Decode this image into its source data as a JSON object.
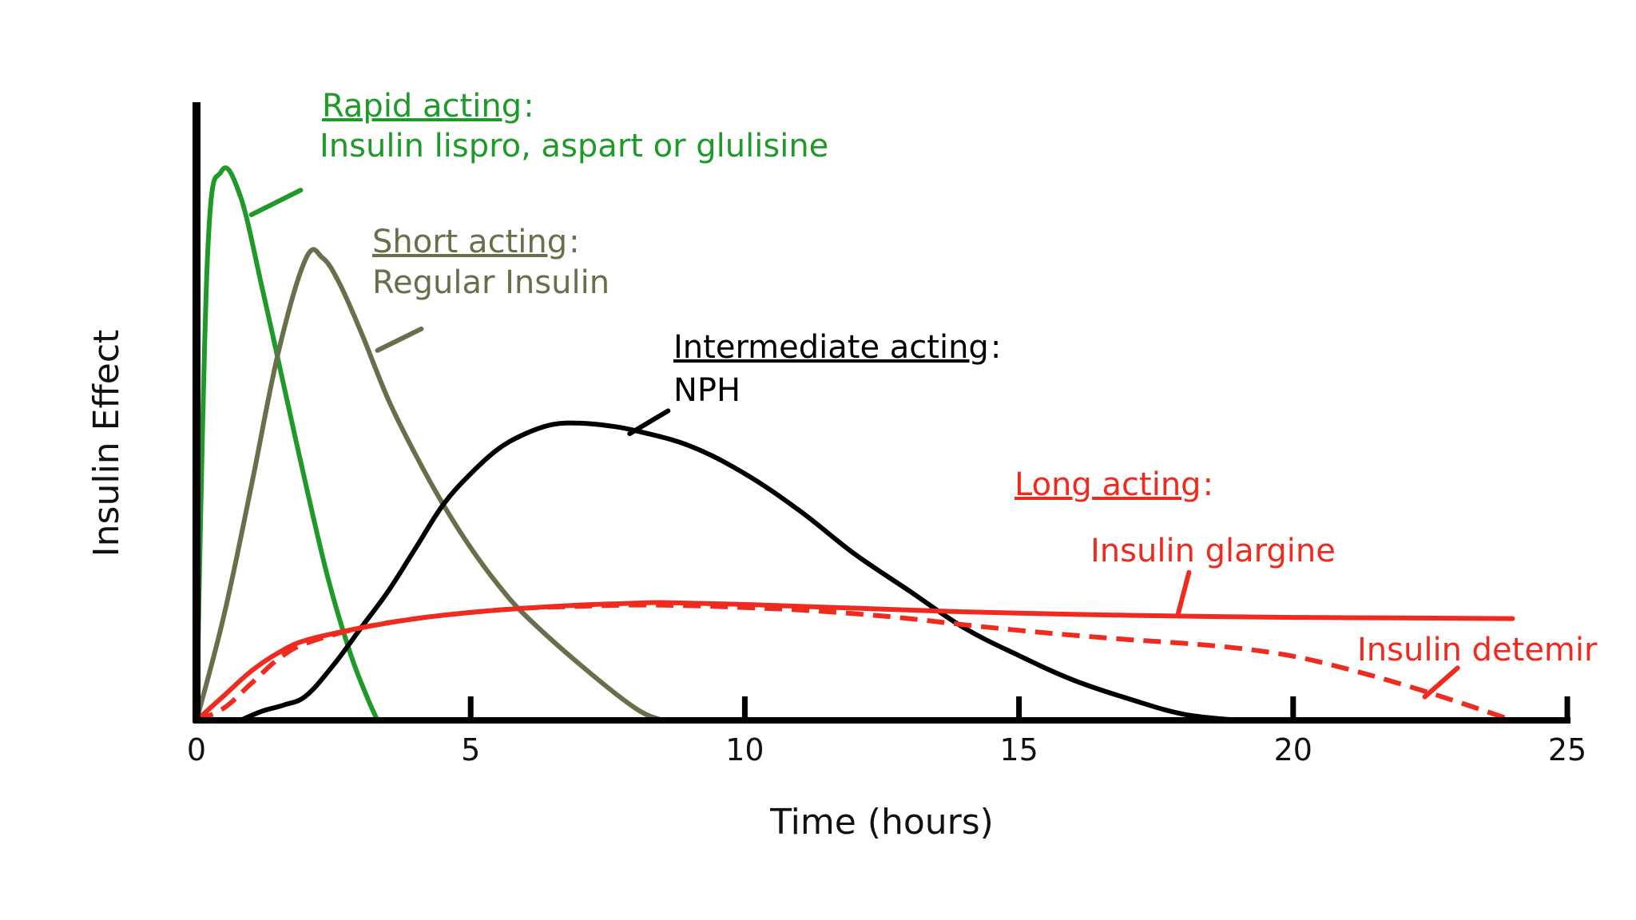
{
  "colors": {
    "rapid": "#1f9a2a",
    "short": "#66704a",
    "intermediate": "#000000",
    "long": "#ee2b1e",
    "axis": "#000000"
  },
  "chart_data": {
    "type": "line",
    "title": "",
    "xlabel": "Time (hours)",
    "ylabel": "Insulin Effect",
    "xlim": [
      0,
      25
    ],
    "ylim": [
      0,
      100
    ],
    "x_ticks": [
      0,
      5,
      10,
      15,
      20,
      25
    ],
    "x_tick_labels": [
      "0",
      "5",
      "10",
      "15",
      "20",
      "25"
    ],
    "grid": false,
    "legend": "none",
    "series": [
      {
        "key": "rapid",
        "x": [
          0,
          0.2,
          0.45,
          0.8,
          1.2,
          1.6,
          2.0,
          2.4,
          2.8,
          3.1,
          3.3
        ],
        "y": [
          0,
          75,
          89,
          85,
          70,
          54,
          38,
          23,
          11,
          4,
          0
        ]
      },
      {
        "key": "short",
        "x": [
          0,
          0.5,
          1.0,
          1.5,
          2.0,
          2.3,
          2.6,
          3.0,
          3.5,
          4.0,
          4.5,
          5.0,
          5.5,
          6.0,
          7.0,
          8.0,
          8.5
        ],
        "y": [
          0,
          17,
          38,
          60,
          75,
          75,
          71,
          63,
          52,
          43,
          35,
          28,
          22,
          17,
          9,
          2,
          0
        ]
      },
      {
        "key": "intermediate",
        "x": [
          0.8,
          1.2,
          1.6,
          2.0,
          2.5,
          3.0,
          3.5,
          4.0,
          4.5,
          5.0,
          5.5,
          6.0,
          6.5,
          7.0,
          7.5,
          8.0,
          9.0,
          10.0,
          11.0,
          12.0,
          13.0,
          14.0,
          15.0,
          16.0,
          17.0,
          18.0,
          19.0
        ],
        "y": [
          0,
          1.5,
          2.5,
          4,
          9,
          15,
          21,
          28,
          35,
          40,
          44,
          46.5,
          48,
          48.2,
          47.8,
          47,
          44.5,
          40,
          34,
          27,
          21,
          15,
          10.5,
          6.5,
          3.5,
          1,
          0
        ]
      },
      {
        "key": "glargine",
        "x": [
          0,
          0.5,
          1.0,
          1.5,
          2.0,
          3.0,
          4.0,
          5.0,
          6.0,
          7.0,
          8.0,
          8.5,
          10.0,
          12.0,
          14.0,
          16.0,
          18.0,
          20.0,
          22.0,
          24.0
        ],
        "y": [
          0,
          4,
          8,
          11,
          13,
          15,
          16.5,
          17.5,
          18.2,
          18.7,
          19,
          19.1,
          18.8,
          18.2,
          17.6,
          17.2,
          16.9,
          16.7,
          16.6,
          16.5
        ]
      },
      {
        "key": "detemir",
        "x": [
          0,
          0.5,
          1.0,
          1.5,
          2.0,
          3.0,
          4.0,
          5.0,
          6.0,
          7.0,
          8.0,
          9.0,
          10.0,
          11.0,
          12.0,
          13.0,
          14.0,
          15.0,
          16.0,
          17.0,
          18.0,
          19.0,
          20.0,
          21.0,
          22.0,
          23.0,
          24.0
        ],
        "y": [
          0,
          2,
          6,
          10,
          12.5,
          15,
          16.5,
          17.5,
          18.2,
          18.5,
          18.7,
          18.6,
          18.3,
          17.9,
          17.3,
          16.5,
          15.5,
          14.6,
          13.8,
          13.1,
          12.5,
          11.7,
          10.4,
          8.3,
          5.8,
          3,
          0
        ]
      }
    ],
    "annotations": [
      {
        "key": "rapid",
        "heading": "Rapid acting",
        "text": "Insulin lispro, aspart or glulisine",
        "pointer": {
          "from": [
            1.0,
            82
          ],
          "to": [
            1.9,
            86
          ]
        }
      },
      {
        "key": "short",
        "heading": "Short acting",
        "text": "Regular Insulin",
        "pointer": {
          "from": [
            3.3,
            60
          ],
          "to": [
            4.1,
            63.5
          ]
        }
      },
      {
        "key": "intermediate",
        "heading": "Intermediate acting",
        "text": "NPH",
        "pointer": {
          "from": [
            7.9,
            46.5
          ],
          "to": [
            8.6,
            50.2
          ]
        }
      },
      {
        "key": "long",
        "heading": "Long acting",
        "text": "",
        "pointer": null
      },
      {
        "key": "glargine",
        "heading": "",
        "text": "Insulin glargine",
        "pointer": {
          "from": [
            17.9,
            17.2
          ],
          "to": [
            18.1,
            24
          ]
        }
      },
      {
        "key": "detemir",
        "heading": "",
        "text": "Insulin detemir",
        "pointer": {
          "from": [
            22.4,
            3.8
          ],
          "to": [
            23.0,
            8.5
          ]
        }
      }
    ]
  }
}
